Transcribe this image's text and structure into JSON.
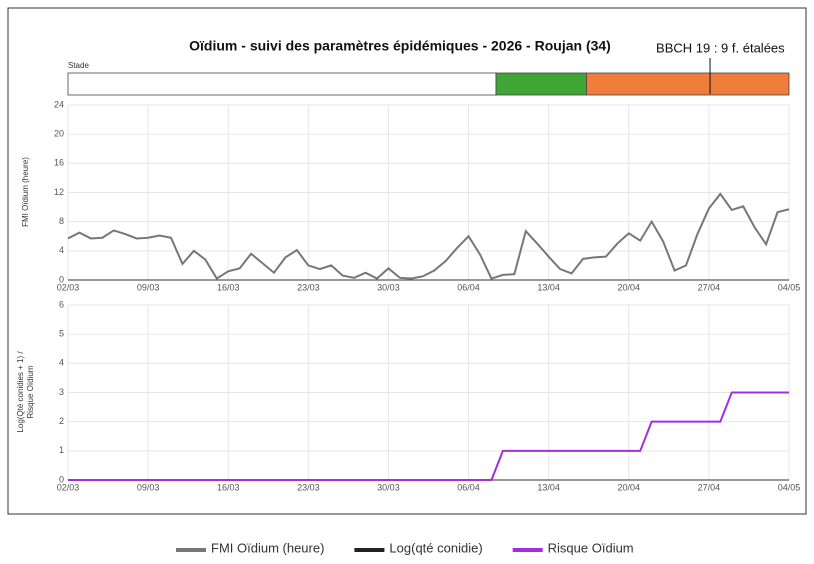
{
  "title": "Oïdium - suivi des paramètres épidémiques - 2026 - Roujan (34)",
  "stage": {
    "label": "Stade",
    "segments": [
      {
        "color": "#ffffff",
        "end": 37.4
      },
      {
        "color": "#3fa535",
        "end": 45.3
      },
      {
        "color": "#ef7d3c",
        "end": 63
      }
    ],
    "annotation": {
      "text": "BBCH 19 : 9 f. étalées",
      "x": 56.1
    }
  },
  "legend": [
    {
      "name": "FMI Oïdium (heure)",
      "color": "#777777"
    },
    {
      "name": "Log(qté conidie)",
      "color": "#222222"
    },
    {
      "name": "Risque Oïdium",
      "color": "#a12fe0"
    }
  ],
  "chart_data": [
    {
      "type": "line",
      "ylabel": [
        "FMI Oïdium (heure)"
      ],
      "categories": [
        "02/03",
        null,
        null,
        null,
        null,
        null,
        null,
        "09/03",
        null,
        null,
        null,
        null,
        null,
        null,
        "16/03",
        null,
        null,
        null,
        null,
        null,
        null,
        "23/03",
        null,
        null,
        null,
        null,
        null,
        null,
        "30/03",
        null,
        null,
        null,
        null,
        null,
        null,
        "06/04",
        null,
        null,
        null,
        null,
        null,
        null,
        "13/04",
        null,
        null,
        null,
        null,
        null,
        null,
        "20/04",
        null,
        null,
        null,
        null,
        null,
        null,
        "27/04",
        null,
        null,
        null,
        null,
        null,
        null,
        "04/05"
      ],
      "ylim": [
        0,
        24
      ],
      "yticks": [
        0,
        4,
        8,
        12,
        16,
        20,
        24
      ],
      "grid": true,
      "series": [
        {
          "name": "FMI Oïdium (heure)",
          "color": "#777777",
          "values": [
            5.7,
            6.5,
            5.7,
            5.8,
            6.8,
            6.3,
            5.7,
            5.8,
            6.1,
            5.8,
            2.2,
            4.0,
            2.8,
            0.2,
            1.2,
            1.6,
            3.6,
            2.3,
            1.0,
            3.1,
            4.1,
            2.0,
            1.5,
            2.0,
            0.6,
            0.3,
            1.0,
            0.2,
            1.6,
            0.3,
            0.2,
            0.5,
            1.3,
            2.6,
            4.4,
            6.0,
            3.5,
            0.2,
            0.7,
            0.8,
            6.7,
            5.0,
            3.2,
            1.5,
            0.9,
            2.9,
            3.1,
            3.2,
            5.0,
            6.4,
            5.4,
            8.0,
            5.3,
            1.3,
            2.0,
            6.3,
            9.8,
            11.8,
            9.6,
            10.1,
            7.2,
            4.9,
            9.3,
            9.7
          ]
        }
      ]
    },
    {
      "type": "line",
      "ylabel": [
        "Log(Qté conidies + 1) /",
        "Risque Oïdium"
      ],
      "categories": [
        "02/03",
        null,
        null,
        null,
        null,
        null,
        null,
        "09/03",
        null,
        null,
        null,
        null,
        null,
        null,
        "16/03",
        null,
        null,
        null,
        null,
        null,
        null,
        "23/03",
        null,
        null,
        null,
        null,
        null,
        null,
        "30/03",
        null,
        null,
        null,
        null,
        null,
        null,
        "06/04",
        null,
        null,
        null,
        null,
        null,
        null,
        "13/04",
        null,
        null,
        null,
        null,
        null,
        null,
        "20/04",
        null,
        null,
        null,
        null,
        null,
        null,
        "27/04",
        null,
        null,
        null,
        null,
        null,
        null,
        "04/05"
      ],
      "ylim": [
        0,
        6
      ],
      "yticks": [
        0,
        1,
        2,
        3,
        4,
        5,
        6
      ],
      "grid": true,
      "series": [
        {
          "name": "Risque Oïdium",
          "color": "#a12fe0",
          "values": [
            0,
            0,
            0,
            0,
            0,
            0,
            0,
            0,
            0,
            0,
            0,
            0,
            0,
            0,
            0,
            0,
            0,
            0,
            0,
            0,
            0,
            0,
            0,
            0,
            0,
            0,
            0,
            0,
            0,
            0,
            0,
            0,
            0,
            0,
            0,
            0,
            0,
            0,
            1,
            1,
            1,
            1,
            1,
            1,
            1,
            1,
            1,
            1,
            1,
            1,
            1,
            2,
            2,
            2,
            2,
            2,
            2,
            2,
            3,
            3,
            3,
            3,
            3,
            3
          ]
        }
      ]
    }
  ]
}
